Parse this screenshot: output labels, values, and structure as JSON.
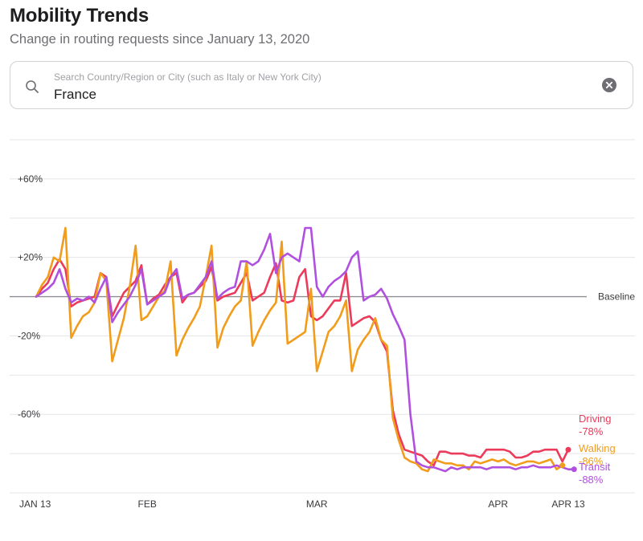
{
  "header": {
    "title": "Mobility Trends",
    "subtitle": "Change in routing requests since January 13, 2020"
  },
  "search": {
    "placeholder": "Search Country/Region or City (such as Italy or New York City)",
    "value": "France"
  },
  "chart_data": {
    "type": "line",
    "title": "Mobility Trends",
    "subtitle": "Change in routing requests since January 13, 2020",
    "ylim": [
      -100,
      80
    ],
    "yticks": [
      60,
      20,
      -20,
      -60
    ],
    "ytick_labels": [
      "+60%",
      "+20%",
      "-20%",
      "-60%"
    ],
    "baseline_label": "Baseline",
    "x_start": "2020-01-13",
    "x_days": 91,
    "xticks": [
      {
        "label": "JAN 13",
        "day": 0
      },
      {
        "label": "FEB",
        "day": 19
      },
      {
        "label": "MAR",
        "day": 48
      },
      {
        "label": "APR",
        "day": 79
      },
      {
        "label": "APR 13",
        "day": 91
      }
    ],
    "grid": true,
    "series": [
      {
        "name": "Driving",
        "end_label": "Driving",
        "end_value": "-78%",
        "color": "#ec3a5a",
        "values": [
          0,
          4,
          7,
          14,
          19,
          14,
          -5,
          -3,
          -2,
          -1,
          0,
          12,
          10,
          -10,
          -4,
          2,
          5,
          8,
          16,
          -4,
          -1,
          1,
          6,
          10,
          12,
          -3,
          1,
          2,
          5,
          8,
          15,
          -2,
          0,
          1,
          2,
          7,
          12,
          -2,
          0,
          2,
          10,
          17,
          -2,
          -3,
          -2,
          10,
          14,
          -10,
          -12,
          -10,
          -6,
          -2,
          -2,
          12,
          -15,
          -13,
          -11,
          -10,
          -13,
          -22,
          -28,
          -58,
          -70,
          -78,
          -79,
          -80,
          -81,
          -84,
          -86,
          -79,
          -79,
          -80,
          -80,
          -80,
          -81,
          -81,
          -82,
          -78,
          -78,
          -78,
          -78,
          -79,
          -82,
          -82,
          -81,
          -79,
          -79,
          -78,
          -78,
          -78,
          -84,
          -78
        ]
      },
      {
        "name": "Walking",
        "end_label": "Walking",
        "end_value": "-86%",
        "color": "#f19c1a",
        "values": [
          0,
          6,
          10,
          20,
          18,
          35,
          -21,
          -15,
          -10,
          -8,
          -3,
          12,
          8,
          -33,
          -22,
          -11,
          5,
          26,
          -12,
          -10,
          -5,
          0,
          3,
          18,
          -30,
          -22,
          -16,
          -11,
          -5,
          10,
          26,
          -26,
          -16,
          -10,
          -5,
          -2,
          18,
          -25,
          -18,
          -12,
          -7,
          -3,
          28,
          -24,
          -22,
          -20,
          -18,
          4,
          -38,
          -28,
          -18,
          -15,
          -10,
          -2,
          -38,
          -27,
          -22,
          -18,
          -11,
          -22,
          -25,
          -62,
          -73,
          -82,
          -84,
          -85,
          -88,
          -89,
          -83,
          -84,
          -85,
          -85,
          -86,
          -86,
          -88,
          -84,
          -85,
          -84,
          -83,
          -84,
          -83,
          -85,
          -86,
          -85,
          -84,
          -84,
          -85,
          -84,
          -83,
          -88,
          -86
        ]
      },
      {
        "name": "Transit",
        "end_label": "Transit",
        "end_value": "-88%",
        "color": "#b050de",
        "values": [
          0,
          2,
          4,
          7,
          14,
          4,
          -3,
          -1,
          -2,
          0,
          -3,
          4,
          10,
          -13,
          -8,
          -4,
          0,
          6,
          14,
          -4,
          -2,
          0,
          2,
          10,
          14,
          -1,
          1,
          2,
          6,
          10,
          18,
          -1,
          2,
          4,
          5,
          18,
          18,
          16,
          18,
          24,
          32,
          12,
          20,
          22,
          20,
          18,
          35,
          35,
          5,
          0,
          5,
          8,
          10,
          13,
          20,
          23,
          -2,
          0,
          1,
          4,
          -1,
          -9,
          -15,
          -22,
          -60,
          -84,
          -86,
          -87,
          -87,
          -88,
          -89,
          -87,
          -88,
          -87,
          -87,
          -87,
          -87,
          -88,
          -87,
          -87,
          -87,
          -87,
          -88,
          -87,
          -87,
          -86,
          -87,
          -87,
          -87,
          -86,
          -87,
          -88,
          -88
        ]
      }
    ]
  }
}
